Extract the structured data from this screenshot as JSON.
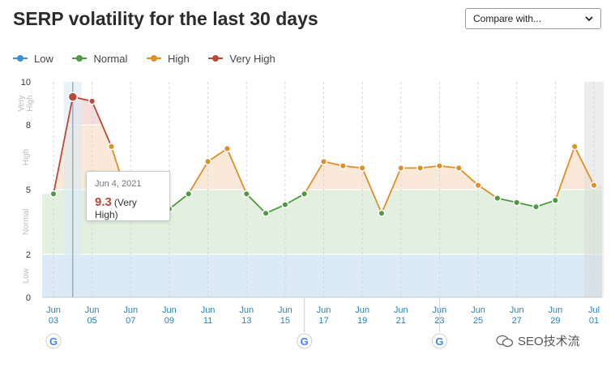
{
  "title": "SERP volatility for the last 30 days",
  "compare": {
    "label": "Compare with..."
  },
  "legend": [
    {
      "label": "Low",
      "color": "#3e8ed0"
    },
    {
      "label": "Normal",
      "color": "#4e9a3e"
    },
    {
      "label": "High",
      "color": "#e08e28"
    },
    {
      "label": "Very High",
      "color": "#b94a3a"
    }
  ],
  "tooltip": {
    "date": "Jun 4, 2021",
    "value": "9.3",
    "level": "(Very High)"
  },
  "watermark": {
    "text": "SEO技术流"
  },
  "chart_data": {
    "type": "line",
    "ylim": [
      0,
      10
    ],
    "y_ticks": [
      0,
      2,
      5,
      8,
      10
    ],
    "bands": [
      {
        "label": "Low",
        "from": 0,
        "to": 2,
        "color": "#cfe3f3"
      },
      {
        "label": "Normal",
        "from": 2,
        "to": 5,
        "color": "#d9ebd6"
      },
      {
        "label": "High",
        "from": 5,
        "to": 8,
        "color": "#f8e2cb"
      },
      {
        "label": "Very High",
        "from": 8,
        "to": 10,
        "color": "#f1d3cf"
      }
    ],
    "band_colors": {
      "low": "#3e8ed0",
      "normal": "#4e9a3e",
      "high": "#e08e28",
      "very_high": "#b94a3a"
    },
    "x_ticks": [
      {
        "month": "Jun",
        "day": "03"
      },
      {
        "month": "Jun",
        "day": "05"
      },
      {
        "month": "Jun",
        "day": "07"
      },
      {
        "month": "Jun",
        "day": "09"
      },
      {
        "month": "Jun",
        "day": "11"
      },
      {
        "month": "Jun",
        "day": "13"
      },
      {
        "month": "Jun",
        "day": "15"
      },
      {
        "month": "Jun",
        "day": "17"
      },
      {
        "month": "Jun",
        "day": "19"
      },
      {
        "month": "Jun",
        "day": "21"
      },
      {
        "month": "Jun",
        "day": "23"
      },
      {
        "month": "Jun",
        "day": "25"
      },
      {
        "month": "Jun",
        "day": "27"
      },
      {
        "month": "Jun",
        "day": "29"
      },
      {
        "month": "Jul",
        "day": "01"
      }
    ],
    "x": [
      "Jun 03",
      "Jun 04",
      "Jun 05",
      "Jun 06",
      "Jun 07",
      "Jun 08",
      "Jun 09",
      "Jun 10",
      "Jun 11",
      "Jun 12",
      "Jun 13",
      "Jun 14",
      "Jun 15",
      "Jun 16",
      "Jun 17",
      "Jun 18",
      "Jun 19",
      "Jun 20",
      "Jun 21",
      "Jun 22",
      "Jun 23",
      "Jun 24",
      "Jun 25",
      "Jun 26",
      "Jun 27",
      "Jun 28",
      "Jun 29",
      "Jun 30",
      "Jul 01"
    ],
    "values": [
      4.8,
      9.3,
      9.1,
      7.0,
      4.2,
      4.0,
      4.1,
      4.8,
      6.3,
      6.9,
      4.8,
      3.9,
      4.3,
      4.8,
      6.3,
      6.1,
      6.0,
      3.9,
      6.0,
      6.0,
      6.1,
      6.0,
      5.2,
      4.6,
      4.4,
      4.2,
      4.5,
      7.0,
      5.2
    ],
    "highlighted": "Jun 04",
    "google_update_markers": [
      "Jun 03",
      "Jun 16",
      "Jun 23"
    ]
  }
}
